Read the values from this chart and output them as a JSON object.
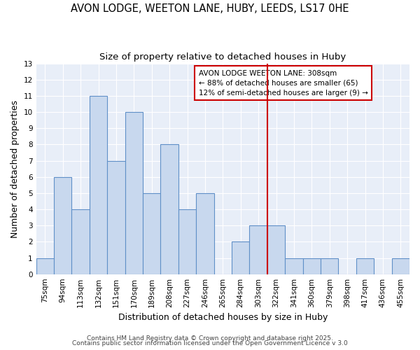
{
  "title1": "AVON LODGE, WEETON LANE, HUBY, LEEDS, LS17 0HE",
  "title2": "Size of property relative to detached houses in Huby",
  "xlabel": "Distribution of detached houses by size in Huby",
  "ylabel": "Number of detached properties",
  "categories": [
    "75sqm",
    "94sqm",
    "113sqm",
    "132sqm",
    "151sqm",
    "170sqm",
    "189sqm",
    "208sqm",
    "227sqm",
    "246sqm",
    "265sqm",
    "284sqm",
    "303sqm",
    "322sqm",
    "341sqm",
    "360sqm",
    "379sqm",
    "398sqm",
    "417sqm",
    "436sqm",
    "455sqm"
  ],
  "values": [
    1,
    6,
    4,
    11,
    7,
    10,
    5,
    8,
    4,
    5,
    0,
    2,
    3,
    3,
    1,
    1,
    1,
    0,
    1,
    0,
    1
  ],
  "bar_color": "#c8d8ee",
  "bar_edge_color": "#6090c8",
  "fig_background_color": "#ffffff",
  "ax_background_color": "#e8eef8",
  "grid_color": "#ffffff",
  "vline_x_index": 12.5,
  "vline_color": "#cc0000",
  "annotation_text": "AVON LODGE WEETON LANE: 308sqm\n← 88% of detached houses are smaller (65)\n12% of semi-detached houses are larger (9) →",
  "annotation_box_facecolor": "#ffffff",
  "annotation_box_edgecolor": "#cc0000",
  "ylim": [
    0,
    13
  ],
  "yticks": [
    0,
    1,
    2,
    3,
    4,
    5,
    6,
    7,
    8,
    9,
    10,
    11,
    12,
    13
  ],
  "footer1": "Contains HM Land Registry data © Crown copyright and database right 2025.",
  "footer2": "Contains public sector information licensed under the Open Government Licence v 3.0",
  "title1_fontsize": 10.5,
  "title2_fontsize": 9.5,
  "axis_label_fontsize": 9,
  "tick_fontsize": 7.5,
  "annotation_fontsize": 7.5,
  "footer_fontsize": 6.5
}
